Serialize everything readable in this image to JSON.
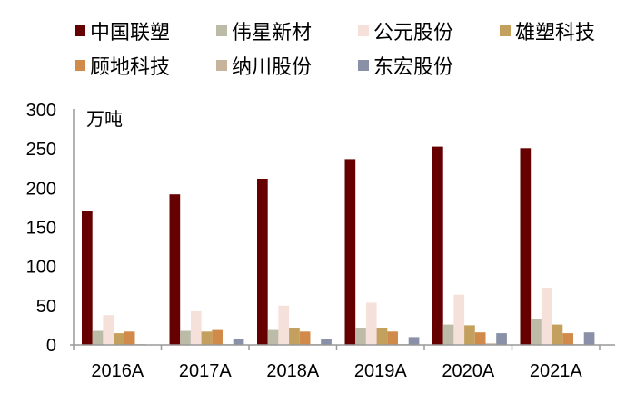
{
  "chart_data": {
    "type": "bar",
    "title": "",
    "unit_label": "万吨",
    "xlabel": "",
    "ylabel": "万吨",
    "ylim": [
      0,
      300
    ],
    "yticks": [
      0,
      50,
      100,
      150,
      200,
      250,
      300
    ],
    "grid": false,
    "legend_position": "top",
    "categories": [
      "2016A",
      "2017A",
      "2018A",
      "2019A",
      "2020A",
      "2021A"
    ],
    "series": [
      {
        "name": "中国联塑",
        "color": "#660000",
        "values": [
          171,
          192,
          212,
          237,
          253,
          251
        ]
      },
      {
        "name": "伟星新材",
        "color": "#BBBBA8",
        "values": [
          18,
          18,
          19,
          22,
          26,
          33
        ]
      },
      {
        "name": "公元股份",
        "color": "#F5E0DA",
        "values": [
          38,
          43,
          50,
          54,
          64,
          73
        ]
      },
      {
        "name": "雄塑科技",
        "color": "#C4A05E",
        "values": [
          15,
          17,
          22,
          22,
          25,
          26
        ]
      },
      {
        "name": "顾地科技",
        "color": "#D08A4A",
        "values": [
          17,
          19,
          17,
          17,
          16,
          15
        ]
      },
      {
        "name": "纳川股份",
        "color": "#C8B49A",
        "values": [
          1,
          1,
          1,
          1,
          2,
          1
        ]
      },
      {
        "name": "东宏股份",
        "color": "#8A90A8",
        "values": [
          0,
          8,
          7,
          10,
          15,
          16
        ]
      }
    ]
  },
  "legend": {
    "items": [
      {
        "label": "中国联塑",
        "color": "#660000"
      },
      {
        "label": "伟星新材",
        "color": "#BBBBA8"
      },
      {
        "label": "公元股份",
        "color": "#F5E0DA"
      },
      {
        "label": "雄塑科技",
        "color": "#C4A05E"
      },
      {
        "label": "顾地科技",
        "color": "#D08A4A"
      },
      {
        "label": "纳川股份",
        "color": "#C8B49A"
      },
      {
        "label": "东宏股份",
        "color": "#8A90A8"
      }
    ]
  },
  "axis": {
    "unit": "万吨",
    "y_labels": [
      "0",
      "50",
      "100",
      "150",
      "200",
      "250",
      "300"
    ],
    "x_labels": [
      "2016A",
      "2017A",
      "2018A",
      "2019A",
      "2020A",
      "2021A"
    ],
    "axis_color": "#999999"
  }
}
